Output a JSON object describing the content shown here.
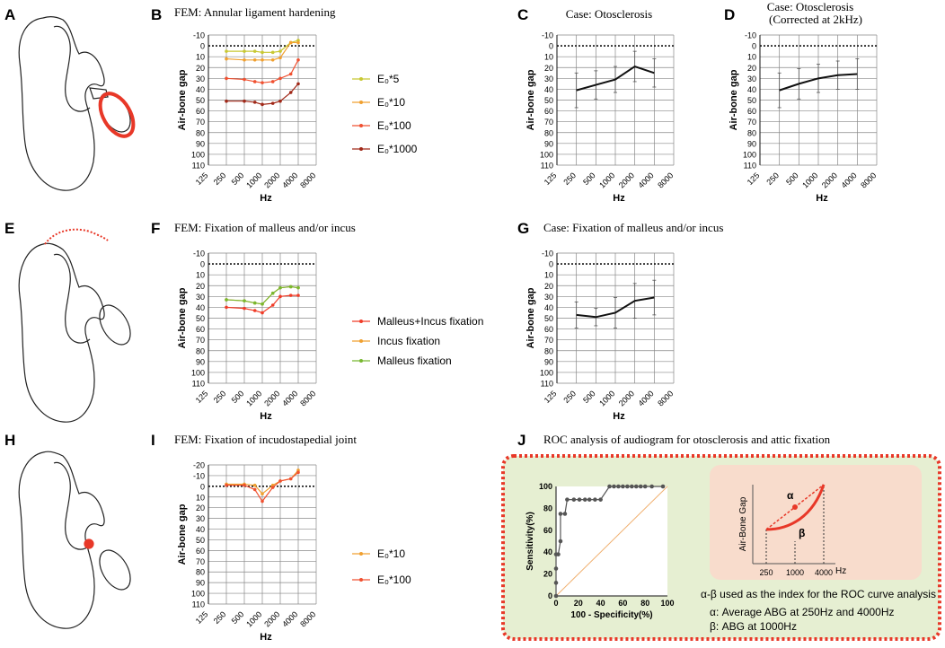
{
  "panel_letters": {
    "A": "A",
    "B": "B",
    "C": "C",
    "D": "D",
    "E": "E",
    "F": "F",
    "G": "G",
    "H": "H",
    "I": "I",
    "J": "J"
  },
  "chart_data": [
    {
      "id": "B",
      "type": "line",
      "title": "FEM: Annular ligament hardening",
      "ylabel": "Air-bone gap",
      "xlabel": "Hz",
      "ylim": [
        110,
        -10
      ],
      "yticks": [
        "-10",
        "0",
        "10",
        "20",
        "30",
        "40",
        "50",
        "60",
        "70",
        "80",
        "90",
        "100",
        "110"
      ],
      "ytick_values": [
        -10,
        0,
        10,
        20,
        30,
        40,
        50,
        60,
        70,
        80,
        90,
        100,
        110
      ],
      "xticks": [
        "125",
        "250",
        "500",
        "1000",
        "2000",
        "4000",
        "8000"
      ],
      "legend": [
        "E₀*5",
        "E₀*10",
        "E₀*100",
        "E₀*1000"
      ],
      "series": [
        {
          "name": "E₀*5",
          "color": "#c8c832",
          "x": [
            250,
            500,
            750,
            1000,
            1500,
            2000,
            3000,
            4000
          ],
          "y": [
            5,
            5,
            5,
            6,
            6,
            5,
            -3,
            -5
          ]
        },
        {
          "name": "E₀*10",
          "color": "#f0a030",
          "x": [
            250,
            500,
            750,
            1000,
            1500,
            2000,
            3000,
            4000
          ],
          "y": [
            12,
            13,
            13,
            13,
            13,
            11,
            -3,
            -3
          ]
        },
        {
          "name": "E₀*100",
          "color": "#f05030",
          "x": [
            250,
            500,
            750,
            1000,
            1500,
            2000,
            3000,
            4000
          ],
          "y": [
            30,
            31,
            33,
            34,
            33,
            30,
            26,
            13
          ]
        },
        {
          "name": "E₀*1000",
          "color": "#a02818",
          "x": [
            250,
            500,
            750,
            1000,
            1500,
            2000,
            3000,
            4000
          ],
          "y": [
            51,
            51,
            52,
            54,
            53,
            51,
            43,
            35
          ]
        }
      ]
    },
    {
      "id": "C",
      "type": "line",
      "title": "Case: Otosclerosis",
      "ylabel": "Air-bone gap",
      "xlabel": "Hz",
      "ylim": [
        110,
        -10
      ],
      "yticks": [
        "-10",
        "0",
        "10",
        "20",
        "30",
        "40",
        "50",
        "60",
        "70",
        "80",
        "90",
        "100",
        "110"
      ],
      "ytick_values": [
        -10,
        0,
        10,
        20,
        30,
        40,
        50,
        60,
        70,
        80,
        90,
        100,
        110
      ],
      "xticks": [
        "125",
        "250",
        "500",
        "1000",
        "2000",
        "4000",
        "8000"
      ],
      "series": [
        {
          "name": "mean",
          "color": "#111111",
          "x": [
            250,
            500,
            1000,
            2000,
            4000
          ],
          "y": [
            41,
            36,
            31,
            19,
            25
          ],
          "err": [
            16,
            13,
            12,
            14,
            13
          ]
        }
      ]
    },
    {
      "id": "D",
      "type": "line",
      "title": "Case: Otosclerosis",
      "subtitle": "(Corrected at 2kHz)",
      "ylabel": "Air-bone gap",
      "xlabel": "Hz",
      "ylim": [
        110,
        -10
      ],
      "yticks": [
        "-10",
        "0",
        "10",
        "20",
        "30",
        "40",
        "50",
        "60",
        "70",
        "80",
        "90",
        "100",
        "110"
      ],
      "ytick_values": [
        -10,
        0,
        10,
        20,
        30,
        40,
        50,
        60,
        70,
        80,
        90,
        100,
        110
      ],
      "xticks": [
        "125",
        "250",
        "500",
        "1000",
        "2000",
        "4000",
        "8000"
      ],
      "series": [
        {
          "name": "mean",
          "color": "#111111",
          "x": [
            250,
            500,
            1000,
            2000,
            4000
          ],
          "y": [
            41,
            35,
            30,
            27,
            26
          ],
          "err": [
            16,
            14,
            13,
            13,
            14
          ]
        }
      ]
    },
    {
      "id": "F",
      "type": "line",
      "title": "FEM: Fixation of malleus and/or incus",
      "ylabel": "Air-bone gap",
      "xlabel": "Hz",
      "ylim": [
        110,
        -10
      ],
      "yticks": [
        "-10",
        "0",
        "10",
        "20",
        "30",
        "40",
        "50",
        "60",
        "70",
        "80",
        "90",
        "100",
        "110"
      ],
      "ytick_values": [
        -10,
        0,
        10,
        20,
        30,
        40,
        50,
        60,
        70,
        80,
        90,
        100,
        110
      ],
      "xticks": [
        "125",
        "250",
        "500",
        "1000",
        "2000",
        "4000",
        "8000"
      ],
      "legend": [
        "Malleus+Incus fixation",
        "Incus fixation",
        "Malleus fixation"
      ],
      "series": [
        {
          "name": "Malleus+Incus fixation",
          "color": "#f03c28",
          "x": [
            250,
            500,
            750,
            1000,
            1500,
            2000,
            3000,
            4000
          ],
          "y": [
            40,
            41,
            43,
            45,
            38,
            30,
            29,
            29
          ]
        },
        {
          "name": "Incus fixation",
          "color": "#f0a030",
          "x": [
            250,
            500,
            750,
            1000,
            1500,
            2000,
            3000,
            4000
          ],
          "y": [
            33,
            34,
            36,
            37,
            27,
            22,
            21,
            22
          ]
        },
        {
          "name": "Malleus fixation",
          "color": "#78b830",
          "x": [
            250,
            500,
            750,
            1000,
            1500,
            2000,
            3000,
            4000
          ],
          "y": [
            33,
            34,
            36,
            37,
            27,
            22,
            21,
            22
          ]
        }
      ]
    },
    {
      "id": "G",
      "type": "line",
      "title": "Case: Fixation of malleus and/or incus",
      "ylabel": "Air-bone gap",
      "xlabel": "Hz",
      "ylim": [
        110,
        -10
      ],
      "yticks": [
        "-10",
        "0",
        "10",
        "20",
        "30",
        "40",
        "50",
        "60",
        "70",
        "80",
        "90",
        "100",
        "110"
      ],
      "ytick_values": [
        -10,
        0,
        10,
        20,
        30,
        40,
        50,
        60,
        70,
        80,
        90,
        100,
        110
      ],
      "xticks": [
        "125",
        "250",
        "500",
        "1000",
        "2000",
        "4000",
        "8000"
      ],
      "series": [
        {
          "name": "mean",
          "color": "#111111",
          "x": [
            250,
            500,
            1000,
            2000,
            4000
          ],
          "y": [
            47,
            49,
            45,
            34,
            31
          ],
          "err": [
            12,
            8,
            14,
            16,
            16
          ]
        }
      ]
    },
    {
      "id": "I",
      "type": "line",
      "title": "FEM: Fixation of incudostapedial joint",
      "ylabel": "Air-bone gap",
      "xlabel": "Hz",
      "ylim": [
        110,
        -20
      ],
      "yticks": [
        "-20",
        "-10",
        "0",
        "10",
        "20",
        "30",
        "40",
        "50",
        "60",
        "70",
        "80",
        "90",
        "100",
        "110"
      ],
      "ytick_values": [
        -20,
        -10,
        0,
        10,
        20,
        30,
        40,
        50,
        60,
        70,
        80,
        90,
        100,
        110
      ],
      "xticks": [
        "125",
        "250",
        "500",
        "1000",
        "2000",
        "4000",
        "8000"
      ],
      "legend": [
        "E₀*10",
        "E₀*100"
      ],
      "series": [
        {
          "name": "E₀*10",
          "color": "#f0a030",
          "x": [
            250,
            500,
            750,
            1000,
            1500,
            2000,
            3000,
            4000
          ],
          "y": [
            -2,
            -2,
            -1,
            7,
            -1,
            -5,
            -7,
            -15
          ]
        },
        {
          "name": "E₀*100",
          "color": "#f05030",
          "x": [
            250,
            500,
            750,
            1000,
            1500,
            2000,
            3000,
            4000
          ],
          "y": [
            -1,
            -1,
            3,
            14,
            1,
            -5,
            -7,
            -13
          ]
        }
      ]
    },
    {
      "id": "J",
      "type": "line",
      "title": "ROC analysis of audiogram for otosclerosis and attic fixation",
      "xlabel": "100 - Specificity(%)",
      "ylabel": "Sensitivity(%)",
      "xlim": [
        0,
        100
      ],
      "ylim": [
        0,
        100
      ],
      "xticks": [
        "0",
        "20",
        "40",
        "60",
        "80",
        "100"
      ],
      "yticks": [
        "0",
        "20",
        "40",
        "60",
        "80",
        "100"
      ],
      "series": [
        {
          "name": "ROC",
          "color": "#555555",
          "x": [
            0,
            0,
            0,
            0,
            2,
            4,
            4,
            8,
            10,
            16,
            21,
            26,
            30,
            35,
            40,
            48,
            52,
            56,
            60,
            64,
            68,
            72,
            76,
            80,
            86,
            96
          ],
          "y": [
            0,
            12,
            25,
            38,
            38,
            50,
            75,
            75,
            88,
            88,
            88,
            88,
            88,
            88,
            88,
            100,
            100,
            100,
            100,
            100,
            100,
            100,
            100,
            100,
            100,
            100
          ]
        },
        {
          "name": "reference",
          "color": "#f0b070",
          "x": [
            0,
            100
          ],
          "y": [
            0,
            100
          ]
        }
      ]
    }
  ],
  "inset": {
    "ylabel": "Air-Bone Gap",
    "xlabel": "Hz",
    "alpha": "α",
    "beta": "β",
    "ticks": [
      "250",
      "1000",
      "4000"
    ]
  },
  "roc_text": {
    "line1": "α-β used as the index for the ROC curve analysis",
    "line2": "α: Average ABG at 250Hz and 4000Hz",
    "line3": "β: ABG at 1000Hz"
  },
  "colors": {
    "dark": "#111111",
    "red": "#e83828",
    "green_bg": "#e6efd2",
    "pink_bg": "#f8dccc"
  }
}
